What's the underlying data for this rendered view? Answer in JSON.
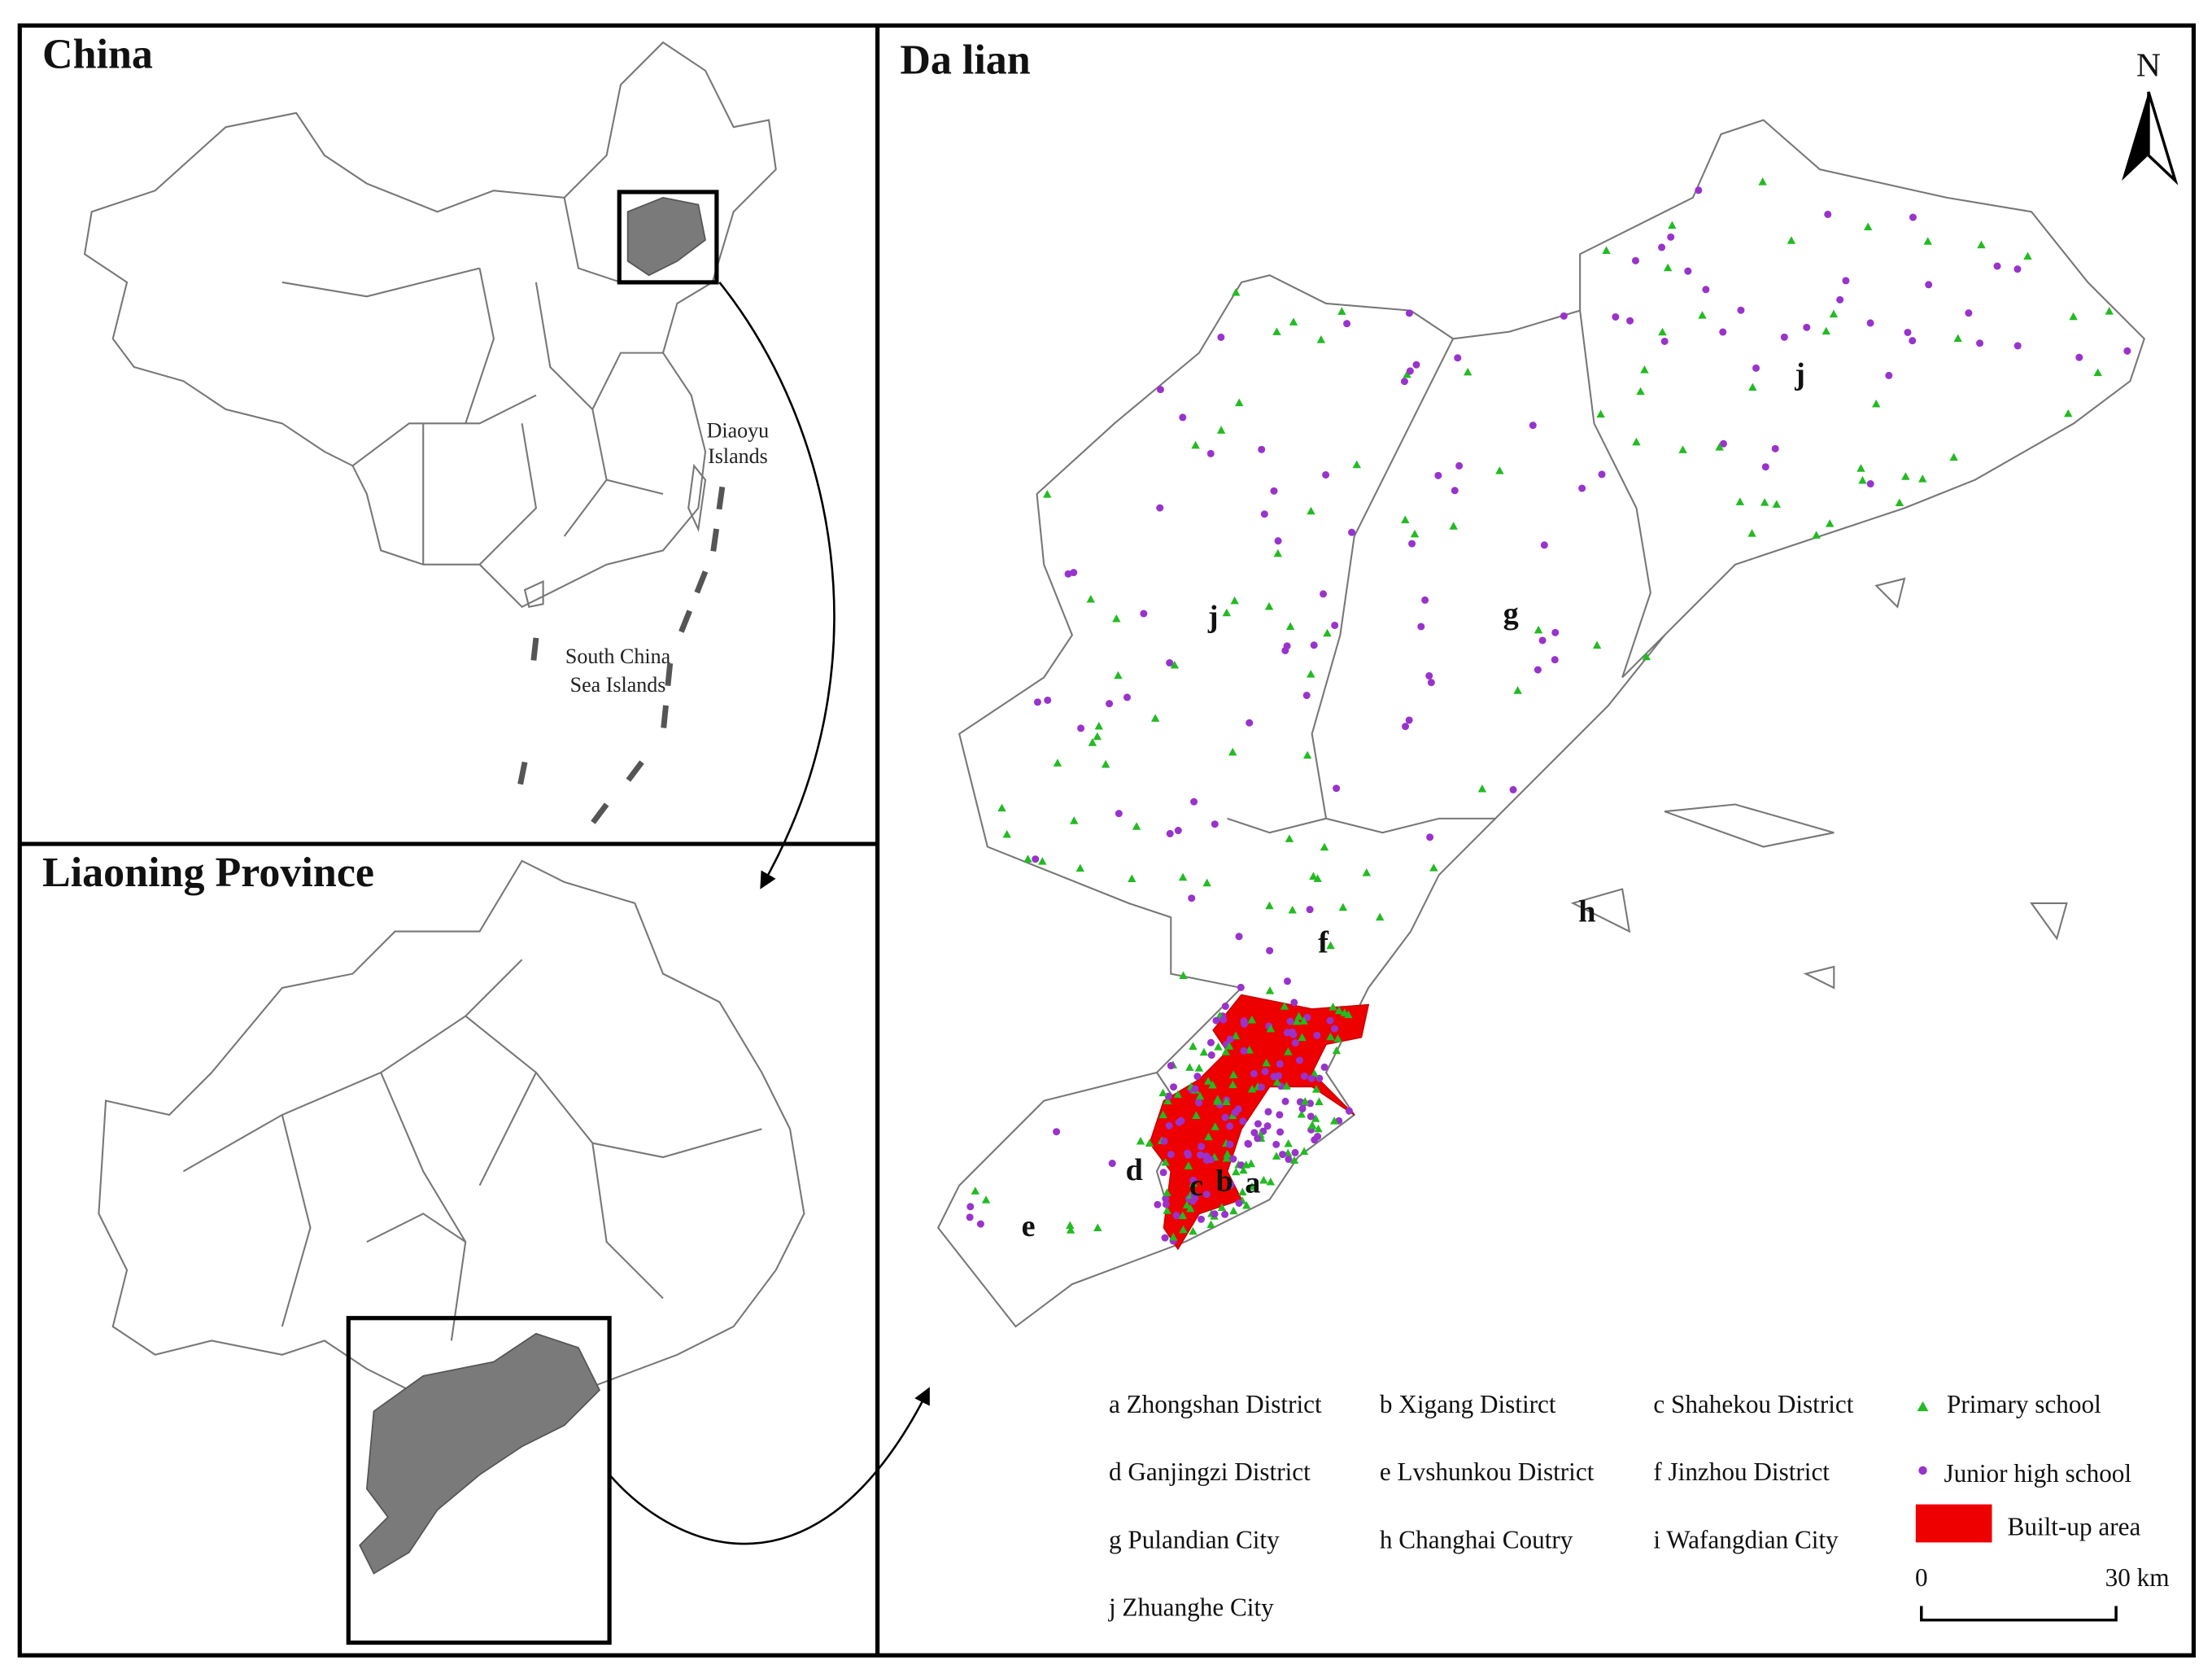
{
  "china": {
    "title": "China",
    "diaoyu": [
      "Diaoyu",
      "Islands"
    ],
    "south_china_sea": [
      "South China",
      "Sea Islands"
    ]
  },
  "liaoning": {
    "title": "Liaoning Province"
  },
  "dalian": {
    "title": "Da lian",
    "north": "N",
    "district_labels": [
      "j",
      "g",
      "j",
      "f",
      "h",
      "d",
      "c",
      "b",
      "a",
      "e"
    ],
    "legend": {
      "districts": [
        "a Zhongshan District",
        "b Xigang Distirct",
        "c Shahekou District",
        "d Ganjingzi District",
        "e Lvshunkou District",
        "f Jinzhou District",
        "g Pulandian City",
        "h Changhai Coutry",
        "i Wafangdian City",
        "j Zhuanghe City"
      ],
      "primary": "Primary school",
      "junior": "Junior high school",
      "builtup": "Built-up area",
      "scale": [
        "0",
        "30 km"
      ]
    }
  }
}
